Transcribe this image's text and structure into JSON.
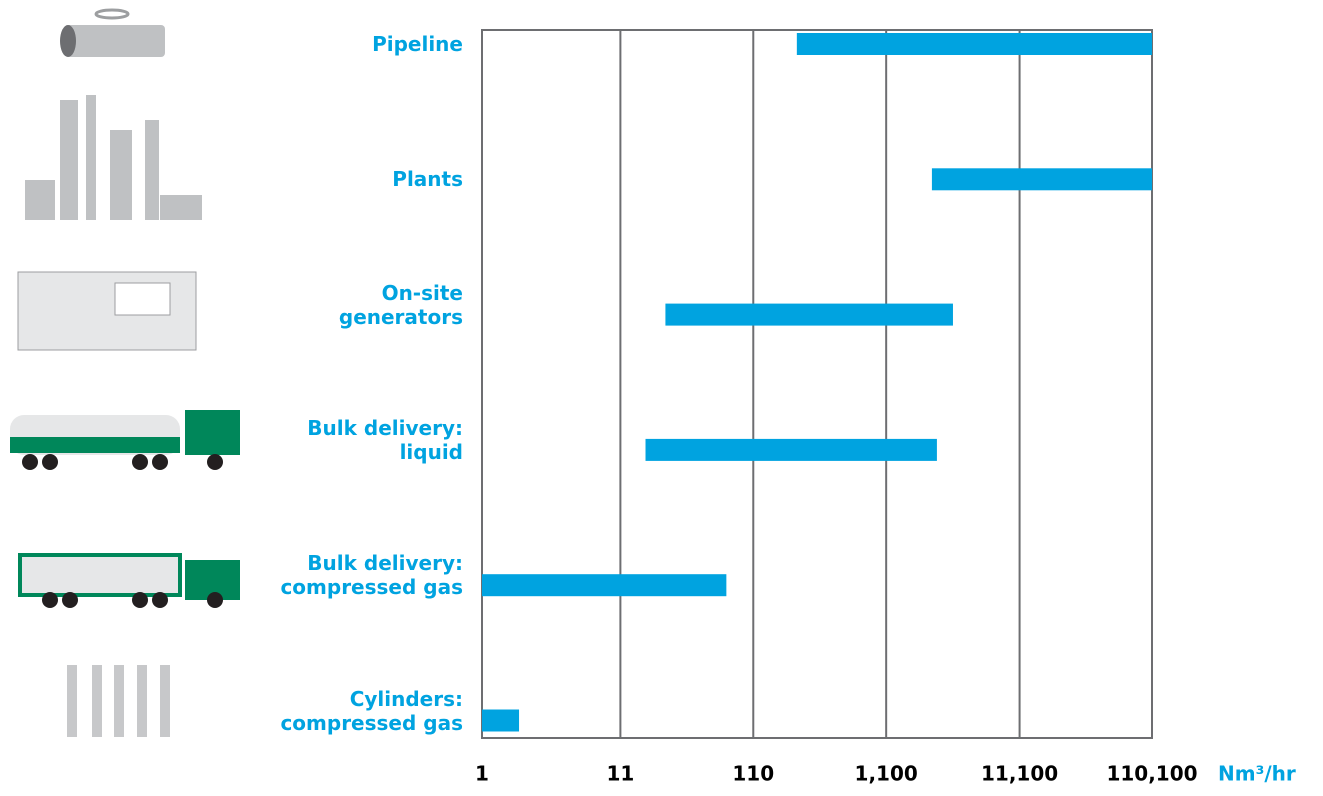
{
  "chart_data": {
    "type": "range_bar",
    "categories": [
      "Pipeline",
      "Plants",
      "On-site\ngenerators",
      "Bulk delivery:\nliquid",
      "Bulk delivery:\ncompressed gas",
      "Cylinders:\ncompressed gas"
    ],
    "low": [
      234,
      2430,
      24,
      17,
      1,
      1
    ],
    "high": [
      110100,
      110100,
      3500,
      2650,
      69,
      1.9
    ],
    "color": "#00a3e0",
    "xlim": [
      1,
      110100
    ],
    "xticks": [
      1,
      11,
      110,
      {
        "value": 1100,
        "label": "1,100"
      },
      {
        "value": 11100,
        "label": "11,100"
      },
      {
        "value": 110100,
        "label": "110,100"
      }
    ],
    "x_scale": "log",
    "grid": true,
    "x_label": "Nm³/hr"
  }
}
